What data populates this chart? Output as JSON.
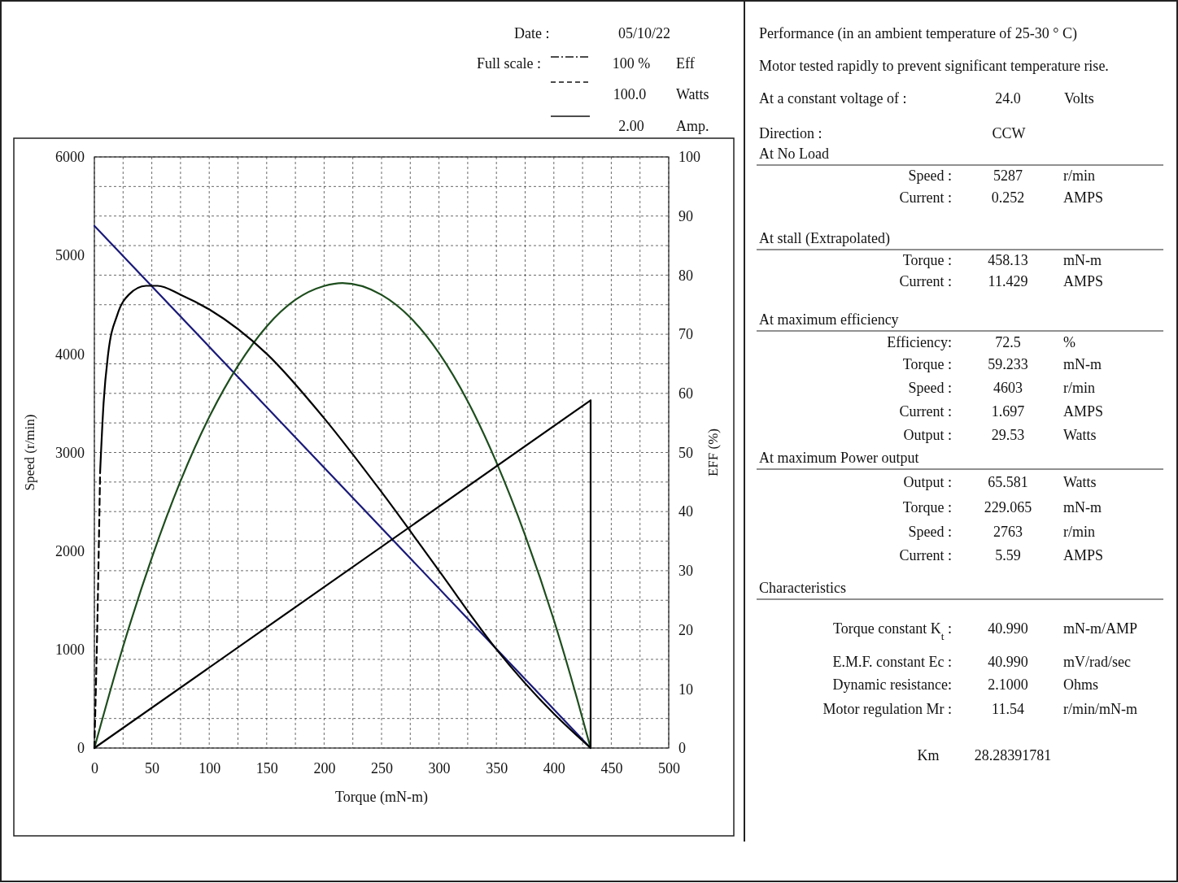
{
  "chart_data": [
    {
      "type": "line",
      "xlabel": "Torque (mN-m)",
      "ylabel": "Speed (r/min)",
      "y2label": "EFF (%)",
      "annotations": [
        "Date :",
        "05/10/22",
        "Full scale :",
        "100 %",
        "Eff",
        "100.0",
        "Watts",
        "2.00",
        "Amp."
      ],
      "xlim": [
        0,
        500
      ],
      "xticks": [
        0,
        {
          "value": 25,
          "label": null
        },
        50,
        {
          "value": 75,
          "label": null
        },
        100,
        {
          "value": 125,
          "label": null
        },
        150,
        {
          "value": 175,
          "label": null
        },
        200,
        {
          "value": 225,
          "label": null
        },
        250,
        {
          "value": 275,
          "label": null
        },
        300,
        {
          "value": 325,
          "label": null
        },
        350,
        {
          "value": 375,
          "label": null
        },
        400,
        {
          "value": 425,
          "label": null
        },
        450,
        {
          "value": 475,
          "label": null
        },
        500
      ],
      "ylim": [
        0,
        6000
      ],
      "yticks": [
        0,
        1000,
        2000,
        3000,
        4000,
        5000,
        6000
      ],
      "y2lim": [
        0,
        100
      ],
      "y2ticks": [
        0,
        {
          "value": 5,
          "label": null
        },
        10,
        {
          "value": 15,
          "label": null
        },
        20,
        {
          "value": 25,
          "label": null
        },
        30,
        {
          "value": 35,
          "label": null
        },
        40,
        {
          "value": 45,
          "label": null
        },
        50,
        {
          "value": 55,
          "label": null
        },
        60,
        {
          "value": 65,
          "label": null
        },
        70,
        {
          "value": 75,
          "label": null
        },
        80,
        {
          "value": 85,
          "label": null
        },
        90,
        {
          "value": 95,
          "label": null
        },
        100
      ],
      "grid": true,
      "line_style": "solid",
      "marker": "none",
      "series": [
        {
          "color": "#1a1a7a",
          "x": [
            0,
            432
          ],
          "values": [
            5300,
            0
          ]
        },
        {
          "color": "#1d4d1d",
          "x": [
            0,
            25,
            50,
            75,
            100,
            125,
            150,
            175,
            200,
            216,
            250,
            275,
            300,
            325,
            350,
            375,
            400,
            420,
            432
          ],
          "values": [
            0,
            1030,
            1930,
            2710,
            3360,
            3880,
            4280,
            4550,
            4690,
            4720,
            4600,
            4370,
            4010,
            3520,
            2900,
            2160,
            1300,
            510,
            0
          ]
        },
        {
          "color": "#000000",
          "x": [
            0,
            432,
            432
          ],
          "values": [
            0,
            3530,
            0
          ]
        },
        {
          "color": "#000000",
          "axis": "y2",
          "x": [
            5,
            8,
            12,
            20,
            30,
            45,
            55,
            75,
            100,
            150,
            200,
            250,
            300,
            350,
            400,
            432
          ],
          "values": [
            46.7,
            58.3,
            66.7,
            73.3,
            76.7,
            78.2,
            78.2,
            76.7,
            74.2,
            66.7,
            55.8,
            43.3,
            30,
            16.7,
            5.8,
            0
          ]
        },
        {
          "color": "#000000",
          "axis": "y2",
          "line_style": "dashed",
          "x": [
            0,
            3,
            5
          ],
          "values": [
            0,
            25,
            46.7
          ]
        }
      ]
    },
    {
      "type": "other",
      "annotations": [
        "Performance (in an ambient temperature of 25-30 ° C)",
        "Motor tested rapidly to prevent significant temperature rise.",
        "At a constant voltage of :",
        "24.0",
        "Volts",
        "Direction :",
        "CCW",
        "At No Load",
        "Speed :",
        "5287",
        "r/min",
        "Current :",
        "0.252",
        "AMPS",
        "At stall (Extrapolated)",
        "Torque :",
        "458.13",
        "mN-m",
        "Current :",
        "11.429",
        "AMPS",
        "At maximum efficiency",
        "Efficiency:",
        "72.5",
        "%",
        "Torque :",
        "59.233",
        "mN-m",
        "Speed :",
        "4603",
        "r/min",
        "Current :",
        "1.697",
        "AMPS",
        "Output :",
        "29.53",
        "Watts",
        "At maximum Power output",
        "Output :",
        "65.581",
        "Watts",
        "Torque :",
        "229.065",
        "mN-m",
        "Speed :",
        "2763",
        "r/min",
        "Current :",
        "5.59",
        "AMPS",
        "Characteristics",
        "Torque constant K$_{t}$ :",
        "40.990",
        "mN-m/AMP",
        "E.M.F. constant Ec :",
        "40.990",
        "mV/rad/sec",
        "Dynamic resistance:",
        "2.1000",
        "Ohms",
        "Motor regulation Mr :",
        "11.54",
        "r/min/mN-m",
        "Km",
        "28.28391781"
      ]
    }
  ]
}
